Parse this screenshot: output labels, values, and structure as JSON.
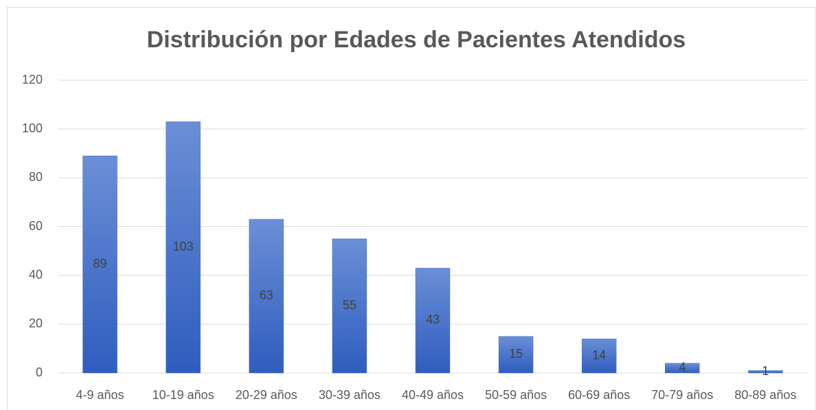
{
  "chart_data": {
    "type": "bar",
    "title": "Distribución por  Edades de Pacientes Atendidos",
    "categories": [
      "4-9 años",
      "10-19 años",
      "20-29 años",
      "30-39 años",
      "40-49 años",
      "50-59 años",
      "60-69 años",
      "70-79 años",
      "80-89 años"
    ],
    "values": [
      89,
      103,
      63,
      55,
      43,
      15,
      14,
      4,
      1
    ],
    "color": "#4472c4",
    "ylim": [
      0,
      120
    ],
    "yticks": [
      0,
      20,
      40,
      60,
      80,
      100,
      120
    ],
    "grid": true,
    "data_labels": true
  }
}
